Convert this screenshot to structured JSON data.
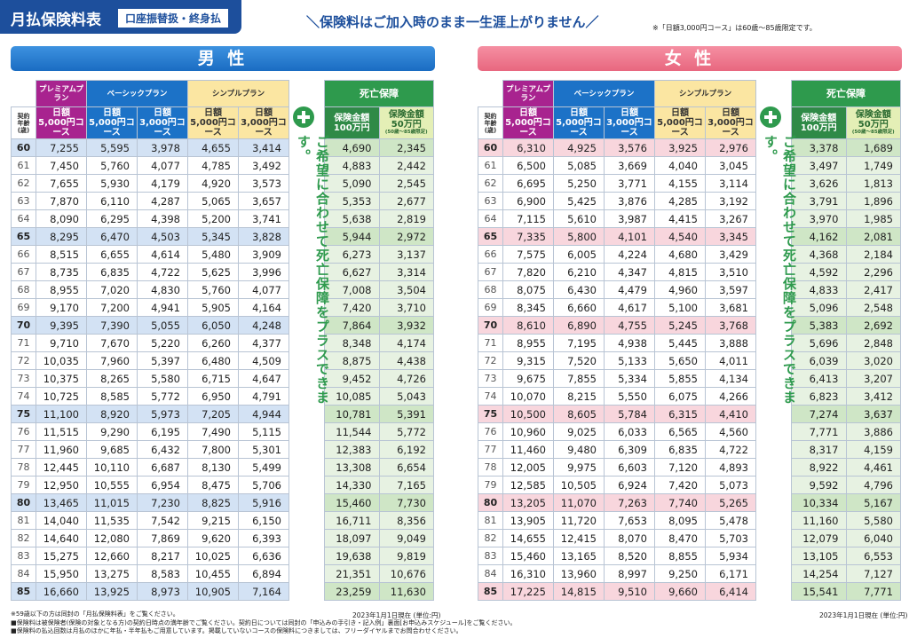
{
  "header": {
    "title": "月払保険料表",
    "badge": "口座振替扱・終身払",
    "slogan": "＼保険料はご加入時のまま一生涯上がりません／",
    "note": "※「日額3,000円コース」は60歳〜85歳限定です。"
  },
  "sections": [
    {
      "gender": "男 性",
      "plans": [
        "プレミアムプラン",
        "ベーシックプラン",
        "シンプルプラン"
      ],
      "age_label": "契約\n年齢\n(歳)",
      "courses": [
        "日額\n5,000円コース",
        "日額\n5,000円コース",
        "日額\n3,000円コース",
        "日額\n5,000円コース",
        "日額\n3,000円コース"
      ],
      "death_title": "死亡保障",
      "death_courses": [
        "保険金額\n100万円",
        "保険金額\n50万円",
        "(50歳〜85歳限定)"
      ],
      "side_text": "ご希望に合わせて死亡保障をプラスできます。",
      "date_note": "2023年1月1日現在 (単位:円)",
      "rows": [
        [
          "60",
          "7,255",
          "5,595",
          "3,978",
          "4,655",
          "3,414",
          "4,690",
          "2,345"
        ],
        [
          "61",
          "7,450",
          "5,760",
          "4,077",
          "4,785",
          "3,492",
          "4,883",
          "2,442"
        ],
        [
          "62",
          "7,655",
          "5,930",
          "4,179",
          "4,920",
          "3,573",
          "5,090",
          "2,545"
        ],
        [
          "63",
          "7,870",
          "6,110",
          "4,287",
          "5,065",
          "3,657",
          "5,353",
          "2,677"
        ],
        [
          "64",
          "8,090",
          "6,295",
          "4,398",
          "5,200",
          "3,741",
          "5,638",
          "2,819"
        ],
        [
          "65",
          "8,295",
          "6,470",
          "4,503",
          "5,345",
          "3,828",
          "5,944",
          "2,972"
        ],
        [
          "66",
          "8,515",
          "6,655",
          "4,614",
          "5,480",
          "3,909",
          "6,273",
          "3,137"
        ],
        [
          "67",
          "8,735",
          "6,835",
          "4,722",
          "5,625",
          "3,996",
          "6,627",
          "3,314"
        ],
        [
          "68",
          "8,955",
          "7,020",
          "4,830",
          "5,760",
          "4,077",
          "7,008",
          "3,504"
        ],
        [
          "69",
          "9,170",
          "7,200",
          "4,941",
          "5,905",
          "4,164",
          "7,420",
          "3,710"
        ],
        [
          "70",
          "9,395",
          "7,390",
          "5,055",
          "6,050",
          "4,248",
          "7,864",
          "3,932"
        ],
        [
          "71",
          "9,710",
          "7,670",
          "5,220",
          "6,260",
          "4,377",
          "8,348",
          "4,174"
        ],
        [
          "72",
          "10,035",
          "7,960",
          "5,397",
          "6,480",
          "4,509",
          "8,875",
          "4,438"
        ],
        [
          "73",
          "10,375",
          "8,265",
          "5,580",
          "6,715",
          "4,647",
          "9,452",
          "4,726"
        ],
        [
          "74",
          "10,725",
          "8,585",
          "5,772",
          "6,950",
          "4,791",
          "10,085",
          "5,043"
        ],
        [
          "75",
          "11,100",
          "8,920",
          "5,973",
          "7,205",
          "4,944",
          "10,781",
          "5,391"
        ],
        [
          "76",
          "11,515",
          "9,290",
          "6,195",
          "7,490",
          "5,115",
          "11,544",
          "5,772"
        ],
        [
          "77",
          "11,960",
          "9,685",
          "6,432",
          "7,800",
          "5,301",
          "12,383",
          "6,192"
        ],
        [
          "78",
          "12,445",
          "10,110",
          "6,687",
          "8,130",
          "5,499",
          "13,308",
          "6,654"
        ],
        [
          "79",
          "12,950",
          "10,555",
          "6,954",
          "8,475",
          "5,706",
          "14,330",
          "7,165"
        ],
        [
          "80",
          "13,465",
          "11,015",
          "7,230",
          "8,825",
          "5,916",
          "15,460",
          "7,730"
        ],
        [
          "81",
          "14,040",
          "11,535",
          "7,542",
          "9,215",
          "6,150",
          "16,711",
          "8,356"
        ],
        [
          "82",
          "14,640",
          "12,080",
          "7,869",
          "9,620",
          "6,393",
          "18,097",
          "9,049"
        ],
        [
          "83",
          "15,275",
          "12,660",
          "8,217",
          "10,025",
          "6,636",
          "19,638",
          "9,819"
        ],
        [
          "84",
          "15,950",
          "13,275",
          "8,583",
          "10,455",
          "6,894",
          "21,351",
          "10,676"
        ],
        [
          "85",
          "16,660",
          "13,925",
          "8,973",
          "10,905",
          "7,164",
          "23,259",
          "11,630"
        ]
      ]
    },
    {
      "gender": "女 性",
      "plans": [
        "プレミアムプラン",
        "ベーシックプラン",
        "シンプルプラン"
      ],
      "age_label": "契約\n年齢\n(歳)",
      "courses": [
        "日額\n5,000円コース",
        "日額\n5,000円コース",
        "日額\n3,000円コース",
        "日額\n5,000円コース",
        "日額\n3,000円コース"
      ],
      "death_title": "死亡保障",
      "death_courses": [
        "保険金額\n100万円",
        "保険金額\n50万円",
        "(50歳〜85歳限定)"
      ],
      "side_text": "ご希望に合わせて死亡保障をプラスできます。",
      "date_note": "2023年1月1日現在 (単位:円)",
      "rows": [
        [
          "60",
          "6,310",
          "4,925",
          "3,576",
          "3,925",
          "2,976",
          "3,378",
          "1,689"
        ],
        [
          "61",
          "6,500",
          "5,085",
          "3,669",
          "4,040",
          "3,045",
          "3,497",
          "1,749"
        ],
        [
          "62",
          "6,695",
          "5,250",
          "3,771",
          "4,155",
          "3,114",
          "3,626",
          "1,813"
        ],
        [
          "63",
          "6,900",
          "5,425",
          "3,876",
          "4,285",
          "3,192",
          "3,791",
          "1,896"
        ],
        [
          "64",
          "7,115",
          "5,610",
          "3,987",
          "4,415",
          "3,267",
          "3,970",
          "1,985"
        ],
        [
          "65",
          "7,335",
          "5,800",
          "4,101",
          "4,540",
          "3,345",
          "4,162",
          "2,081"
        ],
        [
          "66",
          "7,575",
          "6,005",
          "4,224",
          "4,680",
          "3,429",
          "4,368",
          "2,184"
        ],
        [
          "67",
          "7,820",
          "6,210",
          "4,347",
          "4,815",
          "3,510",
          "4,592",
          "2,296"
        ],
        [
          "68",
          "8,075",
          "6,430",
          "4,479",
          "4,960",
          "3,597",
          "4,833",
          "2,417"
        ],
        [
          "69",
          "8,345",
          "6,660",
          "4,617",
          "5,100",
          "3,681",
          "5,096",
          "2,548"
        ],
        [
          "70",
          "8,610",
          "6,890",
          "4,755",
          "5,245",
          "3,768",
          "5,383",
          "2,692"
        ],
        [
          "71",
          "8,955",
          "7,195",
          "4,938",
          "5,445",
          "3,888",
          "5,696",
          "2,848"
        ],
        [
          "72",
          "9,315",
          "7,520",
          "5,133",
          "5,650",
          "4,011",
          "6,039",
          "3,020"
        ],
        [
          "73",
          "9,675",
          "7,855",
          "5,334",
          "5,855",
          "4,134",
          "6,413",
          "3,207"
        ],
        [
          "74",
          "10,070",
          "8,215",
          "5,550",
          "6,075",
          "4,266",
          "6,823",
          "3,412"
        ],
        [
          "75",
          "10,500",
          "8,605",
          "5,784",
          "6,315",
          "4,410",
          "7,274",
          "3,637"
        ],
        [
          "76",
          "10,960",
          "9,025",
          "6,033",
          "6,565",
          "4,560",
          "7,771",
          "3,886"
        ],
        [
          "77",
          "11,460",
          "9,480",
          "6,309",
          "6,835",
          "4,722",
          "8,317",
          "4,159"
        ],
        [
          "78",
          "12,005",
          "9,975",
          "6,603",
          "7,120",
          "4,893",
          "8,922",
          "4,461"
        ],
        [
          "79",
          "12,585",
          "10,505",
          "6,924",
          "7,420",
          "5,073",
          "9,592",
          "4,796"
        ],
        [
          "80",
          "13,205",
          "11,070",
          "7,263",
          "7,740",
          "5,265",
          "10,334",
          "5,167"
        ],
        [
          "81",
          "13,905",
          "11,720",
          "7,653",
          "8,095",
          "5,478",
          "11,160",
          "5,580"
        ],
        [
          "82",
          "14,655",
          "12,415",
          "8,070",
          "8,470",
          "5,703",
          "12,079",
          "6,040"
        ],
        [
          "83",
          "15,460",
          "13,165",
          "8,520",
          "8,855",
          "5,934",
          "13,105",
          "6,553"
        ],
        [
          "84",
          "16,310",
          "13,960",
          "8,997",
          "9,250",
          "6,171",
          "14,254",
          "7,127"
        ],
        [
          "85",
          "17,225",
          "14,815",
          "9,510",
          "9,660",
          "6,414",
          "15,541",
          "7,771"
        ]
      ]
    }
  ],
  "footer": {
    "notes": [
      "※59歳以下の方は同封の「月払保険料表」をご覧ください。",
      "■保険料は被保険者(保険の対象となる方)の契約日時点の満年齢でご覧ください。契約日については同封の「申込みの手引き・記入例」裏面[お申込みスケジュール]をご覧ください。",
      "■保険料の払込回数は月払のほかに年払・半年払もご用意しています。掲載していないコースの保険料につきましては、フリーダイヤルまでお問合わせください。"
    ]
  }
}
